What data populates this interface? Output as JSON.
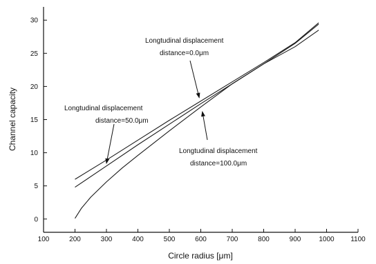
{
  "chart_data": {
    "type": "line",
    "xlabel": "Circle radius [μm]",
    "ylabel": "Channel capacity",
    "xlim": [
      100,
      1100
    ],
    "ylim": [
      -2,
      32
    ],
    "xticks": [
      100,
      200,
      300,
      400,
      500,
      600,
      700,
      800,
      900,
      1000,
      1100
    ],
    "yticks": [
      0,
      5,
      10,
      15,
      20,
      25,
      30
    ],
    "grid": false,
    "legend": "none",
    "line_color": "#1a1a1a",
    "series": [
      {
        "x": [
          200,
          300,
          400,
          500,
          600,
          700,
          800,
          900,
          975
        ],
        "y": [
          6.0,
          8.9,
          11.9,
          14.9,
          17.8,
          20.7,
          23.6,
          26.6,
          29.6
        ]
      },
      {
        "x": [
          200,
          300,
          400,
          500,
          600,
          700,
          800,
          900,
          975
        ],
        "y": [
          4.8,
          8.0,
          11.2,
          14.3,
          17.4,
          20.4,
          23.4,
          26.5,
          29.4
        ]
      },
      {
        "x": [
          200,
          220,
          250,
          300,
          350,
          400,
          500,
          600,
          700,
          800,
          900,
          975
        ],
        "y": [
          0.1,
          1.6,
          3.3,
          5.6,
          7.7,
          9.6,
          13.3,
          16.9,
          20.4,
          23.4,
          26.0,
          28.5
        ]
      }
    ],
    "annotations": [
      {
        "line1": "Longtudinal displacement",
        "line2": "distance=0.0μm",
        "target": {
          "x": 595,
          "y": 18.3
        }
      },
      {
        "line1": "Longtudinal displacement",
        "line2": "distance=50.0μm",
        "target": {
          "x": 300,
          "y": 8.4
        }
      },
      {
        "line1": "Longtudinal displacement",
        "line2": "distance=100.0μm",
        "target": {
          "x": 605,
          "y": 16.2
        }
      }
    ]
  }
}
